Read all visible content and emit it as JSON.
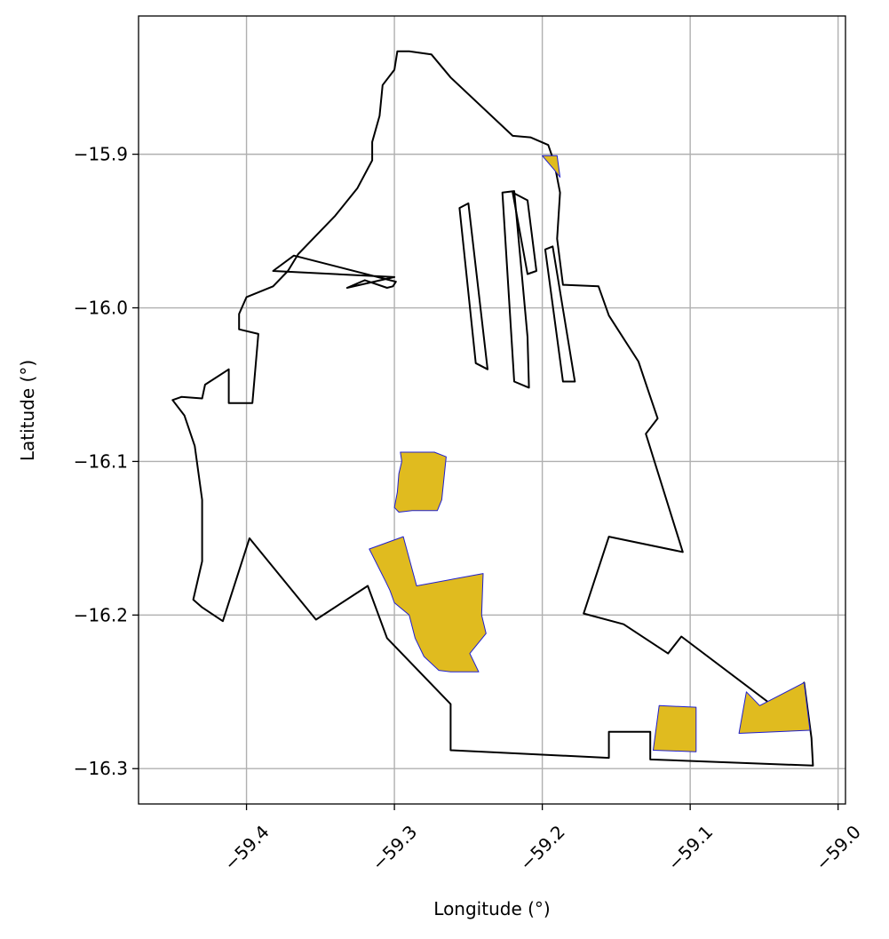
{
  "chart_data": {
    "type": "map",
    "xlabel": "Longitude (°)",
    "ylabel": "Latitude (°)",
    "xlim": [
      -59.473,
      -58.995
    ],
    "ylim": [
      -16.323,
      -15.81
    ],
    "xticks": [
      -59.4,
      -59.3,
      -59.2,
      -59.1,
      -59.0
    ],
    "xtick_labels": [
      "−59.4",
      "−59.3",
      "−59.2",
      "−59.1",
      "−59.0"
    ],
    "yticks": [
      -15.9,
      -16.0,
      -16.1,
      -16.2,
      -16.3
    ],
    "ytick_labels": [
      "−15.9",
      "−16.0",
      "−16.1",
      "−16.2",
      "−16.3"
    ],
    "grid": true,
    "colors": {
      "boundary": "#000000",
      "fill": "#e0bb1f",
      "fill_edge": "#1f1fd0",
      "grid": "#b0b0b0"
    },
    "outline": [
      [
        -59.29,
        -15.833
      ],
      [
        -59.275,
        -15.835
      ],
      [
        -59.262,
        -15.85
      ],
      [
        -59.22,
        -15.888
      ],
      [
        -59.208,
        -15.889
      ],
      [
        -59.196,
        -15.894
      ],
      [
        -59.192,
        -15.905
      ],
      [
        -59.188,
        -15.925
      ],
      [
        -59.19,
        -15.955
      ],
      [
        -59.186,
        -15.985
      ],
      [
        -59.162,
        -15.986
      ],
      [
        -59.155,
        -16.005
      ],
      [
        -59.145,
        -16.02
      ],
      [
        -59.135,
        -16.035
      ],
      [
        -59.128,
        -16.055
      ],
      [
        -59.122,
        -16.072
      ],
      [
        -59.13,
        -16.082
      ],
      [
        -59.105,
        -16.159
      ],
      [
        -59.155,
        -16.149
      ],
      [
        -59.172,
        -16.199
      ],
      [
        -59.145,
        -16.206
      ],
      [
        -59.115,
        -16.225
      ],
      [
        -59.106,
        -16.214
      ],
      [
        -59.04,
        -16.262
      ],
      [
        -59.023,
        -16.244
      ],
      [
        -59.018,
        -16.28
      ],
      [
        -59.017,
        -16.298
      ],
      [
        -59.127,
        -16.294
      ],
      [
        -59.127,
        -16.276
      ],
      [
        -59.155,
        -16.276
      ],
      [
        -59.155,
        -16.293
      ],
      [
        -59.262,
        -16.288
      ],
      [
        -59.262,
        -16.258
      ],
      [
        -59.305,
        -16.215
      ],
      [
        -59.318,
        -16.181
      ],
      [
        -59.353,
        -16.203
      ],
      [
        -59.398,
        -16.15
      ],
      [
        -59.416,
        -16.204
      ],
      [
        -59.43,
        -16.195
      ],
      [
        -59.436,
        -16.19
      ],
      [
        -59.43,
        -16.165
      ],
      [
        -59.43,
        -16.125
      ],
      [
        -59.435,
        -16.09
      ],
      [
        -59.442,
        -16.07
      ],
      [
        -59.45,
        -16.06
      ],
      [
        -59.444,
        -16.058
      ],
      [
        -59.43,
        -16.059
      ],
      [
        -59.428,
        -16.05
      ],
      [
        -59.412,
        -16.04
      ],
      [
        -59.412,
        -16.062
      ],
      [
        -59.396,
        -16.062
      ],
      [
        -59.392,
        -16.017
      ],
      [
        -59.405,
        -16.014
      ],
      [
        -59.405,
        -16.004
      ],
      [
        -59.4,
        -15.993
      ],
      [
        -59.382,
        -15.986
      ],
      [
        -59.372,
        -15.976
      ],
      [
        -59.365,
        -15.965
      ],
      [
        -59.355,
        -15.955
      ],
      [
        -59.34,
        -15.94
      ],
      [
        -59.325,
        -15.922
      ],
      [
        -59.315,
        -15.904
      ],
      [
        -59.315,
        -15.892
      ],
      [
        -59.31,
        -15.875
      ],
      [
        -59.308,
        -15.855
      ],
      [
        -59.3,
        -15.845
      ],
      [
        -59.298,
        -15.833
      ]
    ],
    "strips": [
      [
        [
          -59.382,
          -15.976
        ],
        [
          -59.368,
          -15.966
        ],
        [
          -59.299,
          -15.983
        ],
        [
          -59.301,
          -15.986
        ],
        [
          -59.305,
          -15.987
        ],
        [
          -59.32,
          -15.982
        ],
        [
          -59.332,
          -15.987
        ],
        [
          -59.3,
          -15.98
        ]
      ],
      [
        [
          -59.256,
          -15.935
        ],
        [
          -59.25,
          -15.932
        ],
        [
          -59.237,
          -16.04
        ],
        [
          -59.245,
          -16.036
        ]
      ],
      [
        [
          -59.227,
          -15.925
        ],
        [
          -59.219,
          -15.924
        ],
        [
          -59.21,
          -16.019
        ],
        [
          -59.209,
          -16.052
        ],
        [
          -59.219,
          -16.048
        ]
      ],
      [
        [
          -59.22,
          -15.925
        ],
        [
          -59.21,
          -15.93
        ],
        [
          -59.204,
          -15.976
        ],
        [
          -59.21,
          -15.978
        ]
      ],
      [
        [
          -59.198,
          -15.962
        ],
        [
          -59.193,
          -15.96
        ],
        [
          -59.178,
          -16.048
        ],
        [
          -59.186,
          -16.048
        ]
      ]
    ],
    "fill_polygons": [
      [
        [
          -59.296,
          -16.094
        ],
        [
          -59.287,
          -16.094
        ],
        [
          -59.273,
          -16.094
        ],
        [
          -59.265,
          -16.097
        ],
        [
          -59.268,
          -16.125
        ],
        [
          -59.271,
          -16.132
        ],
        [
          -59.288,
          -16.132
        ],
        [
          -59.297,
          -16.133
        ],
        [
          -59.3,
          -16.13
        ],
        [
          -59.298,
          -16.12
        ],
        [
          -59.297,
          -16.108
        ],
        [
          -59.295,
          -16.1
        ]
      ],
      [
        [
          -59.317,
          -16.157
        ],
        [
          -59.294,
          -16.149
        ],
        [
          -59.285,
          -16.181
        ],
        [
          -59.24,
          -16.173
        ],
        [
          -59.241,
          -16.2
        ],
        [
          -59.238,
          -16.212
        ],
        [
          -59.249,
          -16.225
        ],
        [
          -59.243,
          -16.237
        ],
        [
          -59.262,
          -16.237
        ],
        [
          -59.27,
          -16.236
        ],
        [
          -59.28,
          -16.227
        ],
        [
          -59.286,
          -16.215
        ],
        [
          -59.29,
          -16.2
        ],
        [
          -59.3,
          -16.192
        ],
        [
          -59.303,
          -16.184
        ],
        [
          -59.306,
          -16.178
        ]
      ],
      [
        [
          -59.121,
          -16.259
        ],
        [
          -59.096,
          -16.26
        ],
        [
          -59.096,
          -16.289
        ],
        [
          -59.125,
          -16.288
        ]
      ],
      [
        [
          -59.2,
          -15.901
        ],
        [
          -59.19,
          -15.901
        ],
        [
          -59.188,
          -15.915
        ],
        [
          -59.192,
          -15.91
        ]
      ],
      [
        [
          -59.062,
          -16.25
        ],
        [
          -59.053,
          -16.259
        ],
        [
          -59.023,
          -16.244
        ],
        [
          -59.019,
          -16.275
        ],
        [
          -59.067,
          -16.277
        ]
      ]
    ]
  }
}
